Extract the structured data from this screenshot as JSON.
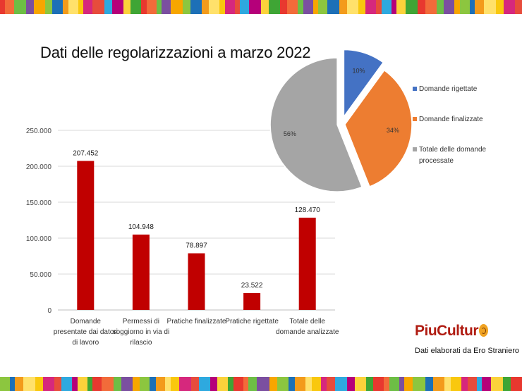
{
  "title": "Dati delle regolarizzazioni a marzo 2022",
  "brand": {
    "name": "PiuCultur",
    "credit": "Dati elaborati da Ero Straniero"
  },
  "colors": {
    "bar": "#c00000",
    "pie": [
      "#4472c4",
      "#ed7d31",
      "#a5a5a5"
    ],
    "stripes": [
      "#e8382f",
      "#f39b1b",
      "#fbd23b",
      "#8cc63f",
      "#2ea9df",
      "#7b4fa0",
      "#d6287d",
      "#f26b3a",
      "#ffe16b",
      "#3fa535",
      "#1d70b7",
      "#b5007a",
      "#f7a600",
      "#e74c3c",
      "#6dbe45",
      "#f9c80e"
    ]
  },
  "chart_data": [
    {
      "type": "bar",
      "categories": [
        "Domande presentate dai datori di lavoro",
        "Permessi di soggiorno in via di rilascio",
        "Pratiche finalizzate",
        "Pratiche rigettate",
        "Totale delle domande analizzate"
      ],
      "category_labels": [
        [
          "Domande",
          "presentate dai datori",
          "di lavoro"
        ],
        [
          "Permessi di",
          "soggiorno in via di",
          "rilascio"
        ],
        [
          "Pratiche finalizzate"
        ],
        [
          "Pratiche rigettate"
        ],
        [
          "Totale delle",
          "domande analizzate"
        ]
      ],
      "values": [
        207452,
        104948,
        78897,
        23522,
        128470
      ],
      "value_labels": [
        "207.452",
        "104.948",
        "78.897",
        "23.522",
        "128.470"
      ],
      "ylim": [
        0,
        250000
      ],
      "yticks": [
        0,
        50000,
        100000,
        150000,
        200000,
        250000
      ],
      "ytick_labels": [
        "0",
        "50.000",
        "100.000",
        "150.000",
        "200.000",
        "250.000"
      ],
      "grid": true,
      "xlabel": "",
      "ylabel": ""
    },
    {
      "type": "pie",
      "labels": [
        "Domande rigettate",
        "Domande finalizzate",
        "Totale delle domande processate"
      ],
      "legend_lines": [
        [
          "Domande rigettate"
        ],
        [
          "Domande finalizzate"
        ],
        [
          "Totale delle domande",
          "processate"
        ]
      ],
      "values": [
        10,
        34,
        56
      ],
      "value_labels": [
        "10%",
        "34%",
        "56%"
      ],
      "legend": "right",
      "exploded": true
    }
  ]
}
